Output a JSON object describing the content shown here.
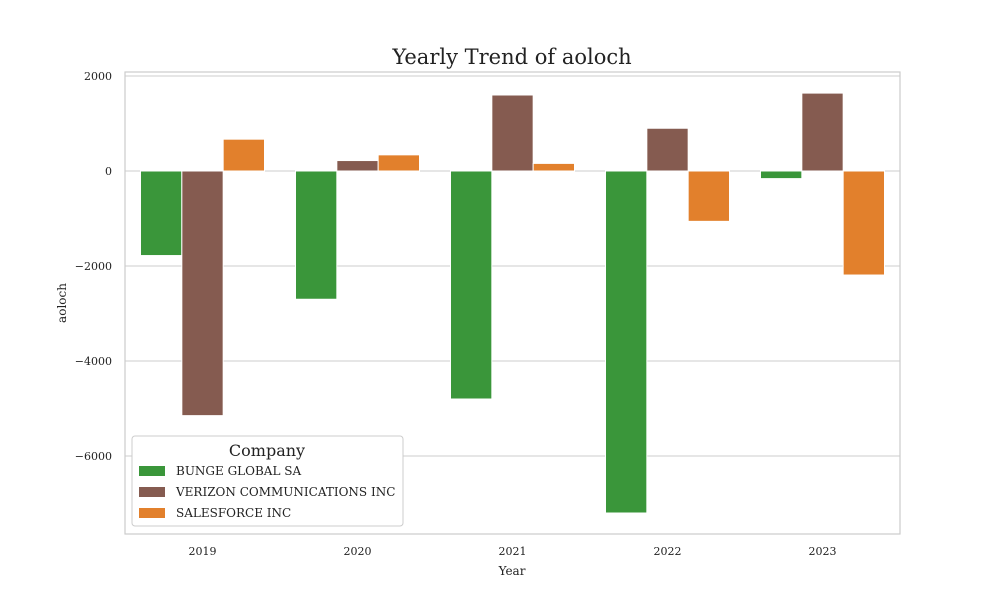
{
  "chart_data": {
    "type": "bar",
    "title": "Yearly Trend of aoloch",
    "xlabel": "Year",
    "ylabel": "aoloch",
    "categories": [
      "2019",
      "2020",
      "2021",
      "2022",
      "2023"
    ],
    "ylim": [
      -7500,
      2000
    ],
    "yticks": [
      2000,
      0,
      -2000,
      -4000,
      -6000
    ],
    "ytick_labels": [
      "2000",
      "0",
      "−2000",
      "−4000",
      "−6000"
    ],
    "grid": true,
    "legend": {
      "title": "Company",
      "placement": "lower-left"
    },
    "series": [
      {
        "name": "BUNGE GLOBAL SA",
        "color": "#3a963a",
        "values": [
          -1780,
          -2700,
          -4800,
          -7200,
          -160
        ]
      },
      {
        "name": "VERIZON COMMUNICATIONS INC",
        "color": "#855b50",
        "values": [
          -5150,
          220,
          1600,
          900,
          1640
        ]
      },
      {
        "name": "SALESFORCE INC",
        "color": "#e2802c",
        "values": [
          670,
          340,
          160,
          -1060,
          -2190
        ]
      }
    ]
  }
}
